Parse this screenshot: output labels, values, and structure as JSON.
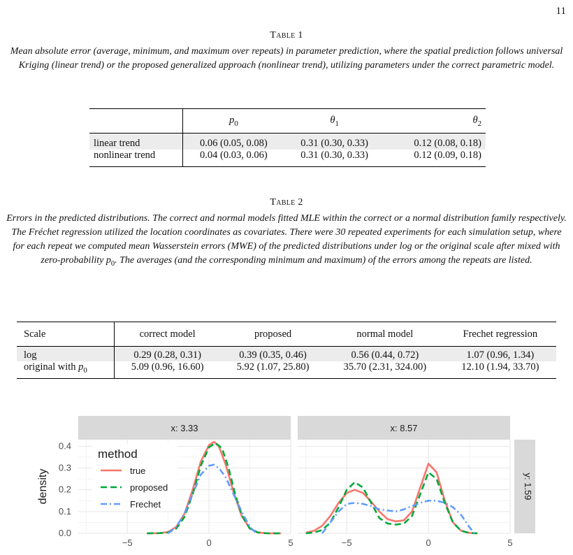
{
  "page_number": "11",
  "table1": {
    "label": "Table 1",
    "caption": "Mean absolute error (average, minimum, and maximum over repeats) in parameter prediction, where the spatial prediction follows universal Kriging (linear trend) or the proposed generalized approach (nonlinear trend), utilizing parameters under the correct parametric model.",
    "headers": [
      "",
      "p0",
      "θ1",
      "θ2"
    ],
    "rows": [
      [
        "linear trend",
        "0.06 (0.05, 0.08)",
        "0.31 (0.30, 0.33)",
        "0.12 (0.08, 0.18)"
      ],
      [
        "nonlinear trend",
        "0.04 (0.03, 0.06)",
        "0.31 (0.30, 0.33)",
        "0.12 (0.09, 0.18)"
      ]
    ]
  },
  "table2": {
    "label": "Table 2",
    "caption": "Errors in the predicted distributions. The correct and normal models fitted MLE within the correct or a normal distribution family respectively. The Fréchet regression utilized the location coordinates as covariates. There were 30 repeated experiments for each simulation setup, where for each repeat we computed mean Wasserstein errors (MWE) of the predicted distributions under log or the original scale after mixed with zero-probability p0. The averages (and the corresponding minimum and maximum) of the errors among the repeats are listed.",
    "headers": [
      "Scale",
      "correct model",
      "proposed",
      "normal model",
      "Frechet regression"
    ],
    "rows": [
      [
        "log",
        "0.29 (0.28, 0.31)",
        "0.39 (0.35, 0.46)",
        "0.56 (0.44, 0.72)",
        "1.07 (0.96, 1.34)"
      ],
      [
        "original with p0",
        "5.09 (0.96, 16.60)",
        "5.92 (1.07, 25.80)",
        "35.70 (2.31, 324.00)",
        "12.10 (1.94, 33.70)"
      ]
    ]
  },
  "chart_data": {
    "type": "line",
    "ylabel": "density",
    "legend": {
      "title": "method",
      "placement": "top-left",
      "entries": [
        "true",
        "proposed",
        "Frechet"
      ]
    },
    "colors": {
      "true": "#F8766D",
      "proposed": "#00A83A",
      "Frechet": "#619CFF"
    },
    "row_strip": "y: 1.59",
    "ylim": [
      0,
      0.43
    ],
    "yticks": [
      "0.0",
      "0.1",
      "0.2",
      "0.3",
      "0.4"
    ],
    "xlim": [
      -8,
      5
    ],
    "xticks": [
      "−5",
      "0",
      "5"
    ],
    "xtick_values": [
      -5,
      0,
      5
    ],
    "panels": [
      {
        "strip": "x: 3.33",
        "series": [
          {
            "name": "true",
            "x": [
              -3.8,
              -3.0,
              -2.5,
              -2.0,
              -1.5,
              -1.0,
              -0.5,
              0.0,
              0.3,
              0.6,
              1.0,
              1.5,
              2.0,
              2.5,
              3.0,
              3.6,
              4.4
            ],
            "y": [
              0,
              0.001,
              0.006,
              0.03,
              0.09,
              0.2,
              0.33,
              0.405,
              0.42,
              0.4,
              0.32,
              0.19,
              0.08,
              0.022,
              0.004,
              0,
              0
            ]
          },
          {
            "name": "proposed",
            "x": [
              -3.8,
              -3.0,
              -2.5,
              -2.0,
              -1.5,
              -1.0,
              -0.5,
              0.0,
              0.4,
              0.8,
              1.2,
              1.6,
              2.0,
              2.5,
              3.0,
              3.6,
              4.4
            ],
            "y": [
              0,
              0.001,
              0.004,
              0.022,
              0.075,
              0.18,
              0.31,
              0.395,
              0.415,
              0.39,
              0.3,
              0.18,
              0.085,
              0.022,
              0.004,
              0,
              0
            ]
          },
          {
            "name": "Frechet",
            "x": [
              -2.5,
              -2.0,
              -1.5,
              -1.0,
              -0.5,
              0.0,
              0.3,
              0.6,
              1.0,
              1.5,
              2.0,
              2.5,
              2.9
            ],
            "y": [
              0,
              0.03,
              0.09,
              0.18,
              0.27,
              0.31,
              0.315,
              0.3,
              0.26,
              0.18,
              0.1,
              0.03,
              0
            ]
          }
        ]
      },
      {
        "strip": "x: 8.57",
        "series": [
          {
            "name": "true",
            "x": [
              -7.5,
              -7.0,
              -6.5,
              -6.0,
              -5.5,
              -5.0,
              -4.5,
              -4.0,
              -3.5,
              -3.0,
              -2.5,
              -2.0,
              -1.5,
              -1.0,
              -0.5,
              0.0,
              0.5,
              1.0,
              1.5,
              2.0,
              2.5,
              3.0
            ],
            "y": [
              0.003,
              0.012,
              0.035,
              0.08,
              0.14,
              0.185,
              0.2,
              0.185,
              0.145,
              0.1,
              0.065,
              0.055,
              0.06,
              0.1,
              0.21,
              0.32,
              0.28,
              0.15,
              0.05,
              0.012,
              0.002,
              0
            ]
          },
          {
            "name": "proposed",
            "x": [
              -7.5,
              -7.0,
              -6.5,
              -6.0,
              -5.5,
              -5.0,
              -4.5,
              -4.0,
              -3.5,
              -3.0,
              -2.5,
              -2.0,
              -1.5,
              -1.0,
              -0.5,
              0.0,
              0.5,
              1.0,
              1.5,
              2.0,
              2.5,
              3.0
            ],
            "y": [
              0,
              0.004,
              0.015,
              0.05,
              0.12,
              0.2,
              0.235,
              0.21,
              0.14,
              0.07,
              0.045,
              0.04,
              0.045,
              0.08,
              0.18,
              0.28,
              0.25,
              0.14,
              0.05,
              0.012,
              0.002,
              0
            ]
          },
          {
            "name": "Frechet",
            "x": [
              -6.5,
              -6.0,
              -5.5,
              -5.0,
              -4.5,
              -4.0,
              -3.5,
              -3.0,
              -2.5,
              -2.0,
              -1.5,
              -1.0,
              -0.5,
              0.0,
              0.5,
              1.0,
              1.5,
              2.0,
              2.5,
              2.8
            ],
            "y": [
              0,
              0.05,
              0.1,
              0.135,
              0.14,
              0.135,
              0.125,
              0.11,
              0.105,
              0.1,
              0.11,
              0.125,
              0.14,
              0.15,
              0.15,
              0.14,
              0.12,
              0.085,
              0.03,
              0
            ]
          }
        ]
      }
    ]
  }
}
